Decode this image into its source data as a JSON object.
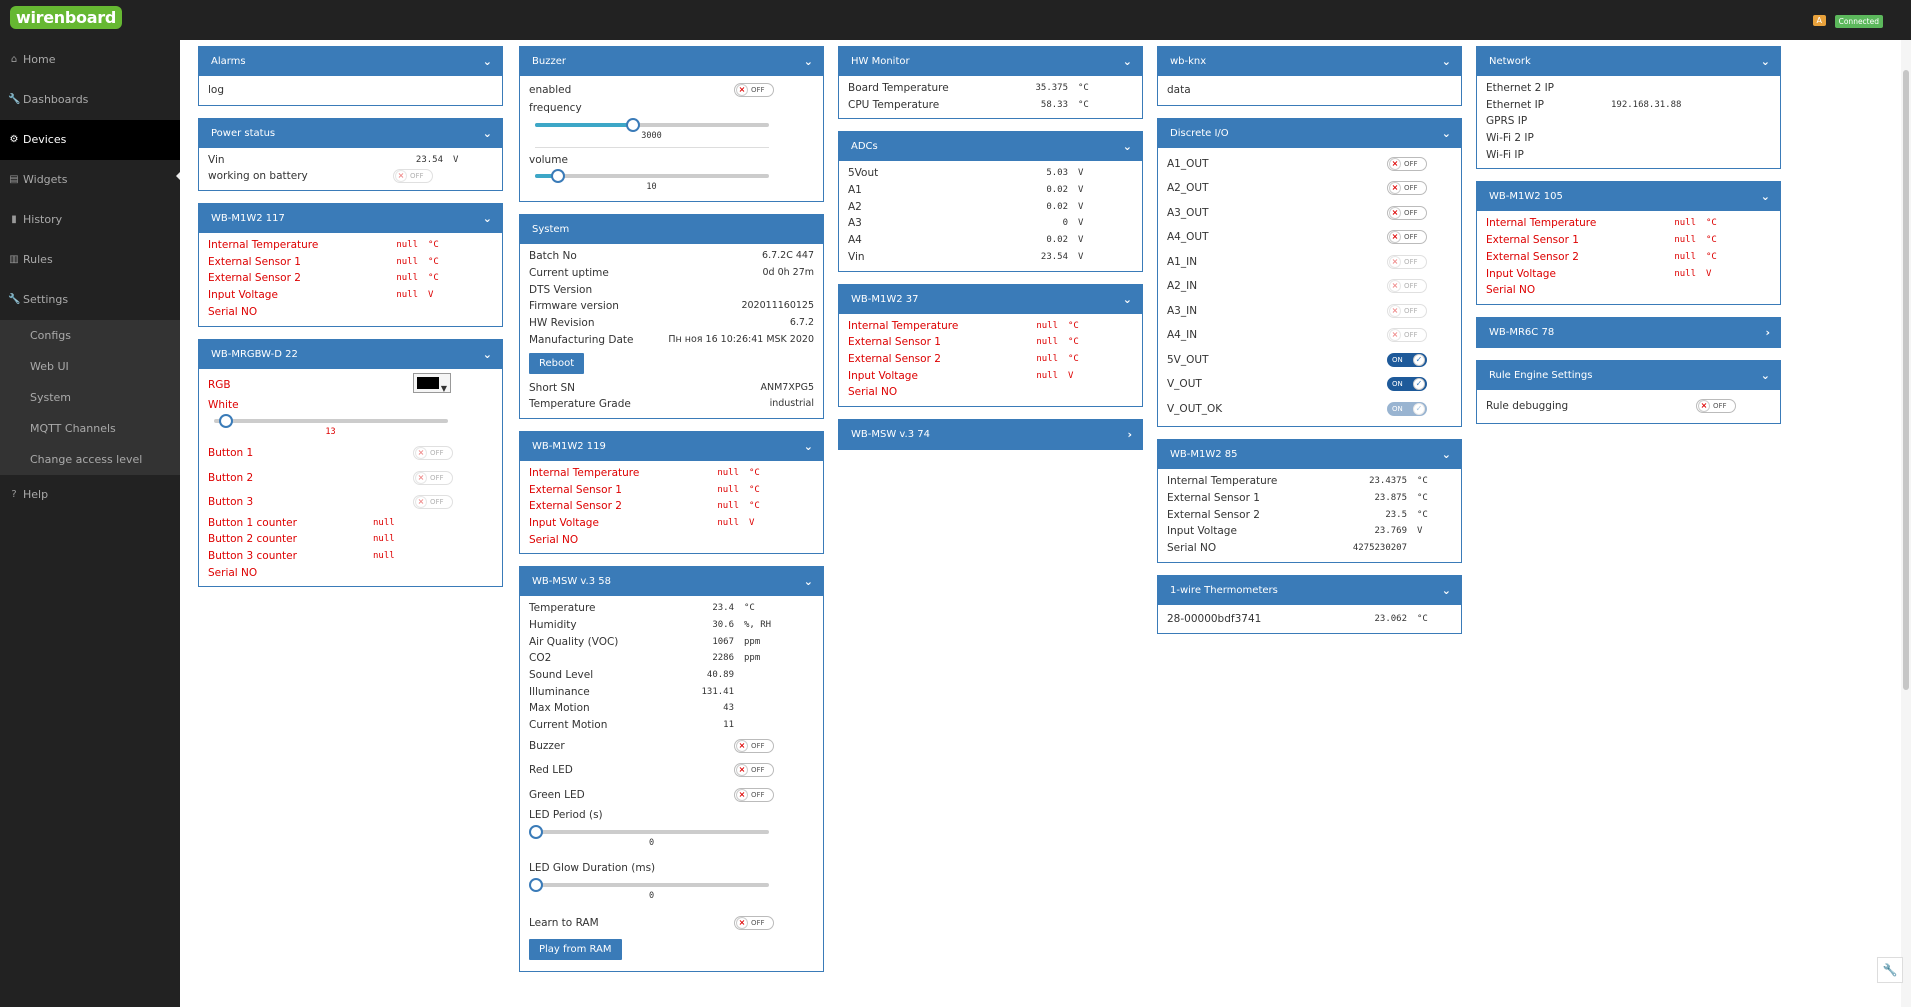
{
  "app": {
    "logo": "wirenboard",
    "badge_a": "A",
    "status": "Connected"
  },
  "nav": {
    "items": [
      {
        "icon": "⌂",
        "label": "Home"
      },
      {
        "icon": "🔧",
        "label": "Dashboards"
      },
      {
        "icon": "⚙",
        "label": "Devices"
      },
      {
        "icon": "▤",
        "label": "Widgets"
      },
      {
        "icon": "▮",
        "label": "History"
      },
      {
        "icon": "▥",
        "label": "Rules"
      },
      {
        "icon": "🔧",
        "label": "Settings"
      }
    ],
    "sub": [
      "Configs",
      "Web UI",
      "System",
      "MQTT Channels",
      "Change access level"
    ],
    "help": {
      "icon": "?",
      "label": "Help"
    }
  },
  "panels": {
    "alarms": {
      "title": "Alarms",
      "rows": [
        {
          "label": "log"
        }
      ]
    },
    "power": {
      "title": "Power status",
      "vin": {
        "label": "Vin",
        "value": "23.54",
        "unit": "V"
      },
      "battery": {
        "label": "working on battery",
        "state": "OFF"
      }
    },
    "m117": {
      "title": "WB-M1W2 117",
      "rows": [
        {
          "label": "Internal Temperature",
          "value": "null",
          "unit": "°C"
        },
        {
          "label": "External Sensor 1",
          "value": "null",
          "unit": "°C"
        },
        {
          "label": "External Sensor 2",
          "value": "null",
          "unit": "°C"
        },
        {
          "label": "Input Voltage",
          "value": "null",
          "unit": "V"
        },
        {
          "label": "Serial NO",
          "value": "",
          "unit": ""
        }
      ]
    },
    "rgbw": {
      "title": "WB-MRGBW-D 22",
      "rgb": "RGB",
      "white": "White",
      "white_value": "13",
      "white_pct": 0.05,
      "buttons": [
        {
          "label": "Button 1",
          "state": "OFF"
        },
        {
          "label": "Button 2",
          "state": "OFF"
        },
        {
          "label": "Button 3",
          "state": "OFF"
        }
      ],
      "counters": [
        {
          "label": "Button 1 counter",
          "value": "null"
        },
        {
          "label": "Button 2 counter",
          "value": "null"
        },
        {
          "label": "Button 3 counter",
          "value": "null"
        }
      ],
      "serial": "Serial NO"
    },
    "buzzer": {
      "title": "Buzzer",
      "enabled": "enabled",
      "enabled_state": "OFF",
      "frequency": "frequency",
      "frequency_value": "3000",
      "frequency_pct": 0.42,
      "volume": "volume",
      "volume_value": "10",
      "volume_pct": 0.1
    },
    "system": {
      "title": "System",
      "rows": [
        {
          "label": "Batch No",
          "value": "6.7.2C 447"
        },
        {
          "label": "Current uptime",
          "value": "0d 0h 27m"
        },
        {
          "label": "DTS Version",
          "value": ""
        },
        {
          "label": "Firmware version",
          "value": "202011160125"
        },
        {
          "label": "HW Revision",
          "value": "6.7.2"
        },
        {
          "label": "Manufacturing Date",
          "value": "Пн ноя 16 10:26:41 MSK 2020"
        }
      ],
      "reboot": "Reboot",
      "rows2": [
        {
          "label": "Short SN",
          "value": "ANM7XPG5"
        },
        {
          "label": "Temperature Grade",
          "value": "industrial"
        }
      ]
    },
    "m119": {
      "title": "WB-M1W2 119",
      "rows": [
        {
          "label": "Internal Temperature",
          "value": "null",
          "unit": "°C"
        },
        {
          "label": "External Sensor 1",
          "value": "null",
          "unit": "°C"
        },
        {
          "label": "External Sensor 2",
          "value": "null",
          "unit": "°C"
        },
        {
          "label": "Input Voltage",
          "value": "null",
          "unit": "V"
        },
        {
          "label": "Serial NO",
          "value": "",
          "unit": ""
        }
      ]
    },
    "msw58": {
      "title": "WB-MSW v.3 58",
      "rows": [
        {
          "label": "Temperature",
          "value": "23.4",
          "unit": "°C"
        },
        {
          "label": "Humidity",
          "value": "30.6",
          "unit": "%, RH"
        },
        {
          "label": "Air Quality (VOC)",
          "value": "1067",
          "unit": "ppm"
        },
        {
          "label": "CO2",
          "value": "2286",
          "unit": "ppm"
        },
        {
          "label": "Sound Level",
          "value": "40.89",
          "unit": ""
        },
        {
          "label": "Illuminance",
          "value": "131.41",
          "unit": ""
        },
        {
          "label": "Max Motion",
          "value": "43",
          "unit": ""
        },
        {
          "label": "Current Motion",
          "value": "11",
          "unit": ""
        }
      ],
      "toggles": [
        {
          "label": "Buzzer",
          "state": "OFF"
        },
        {
          "label": "Red LED",
          "state": "OFF"
        },
        {
          "label": "Green LED",
          "state": "OFF"
        }
      ],
      "led_period": "LED Period (s)",
      "led_period_value": "0",
      "led_glow": "LED Glow Duration (ms)",
      "led_glow_value": "0",
      "learn": {
        "label": "Learn to RAM",
        "state": "OFF"
      },
      "play": "Play from RAM"
    },
    "hw": {
      "title": "HW Monitor",
      "rows": [
        {
          "label": "Board Temperature",
          "value": "35.375",
          "unit": "°C"
        },
        {
          "label": "CPU Temperature",
          "value": "58.33",
          "unit": "°C"
        }
      ]
    },
    "adcs": {
      "title": "ADCs",
      "rows": [
        {
          "label": "5Vout",
          "value": "5.03",
          "unit": "V"
        },
        {
          "label": "A1",
          "value": "0.02",
          "unit": "V"
        },
        {
          "label": "A2",
          "value": "0.02",
          "unit": "V"
        },
        {
          "label": "A3",
          "value": "0",
          "unit": "V"
        },
        {
          "label": "A4",
          "value": "0.02",
          "unit": "V"
        },
        {
          "label": "Vin",
          "value": "23.54",
          "unit": "V"
        }
      ]
    },
    "m37": {
      "title": "WB-M1W2 37",
      "rows": [
        {
          "label": "Internal Temperature",
          "value": "null",
          "unit": "°C"
        },
        {
          "label": "External Sensor 1",
          "value": "null",
          "unit": "°C"
        },
        {
          "label": "External Sensor 2",
          "value": "null",
          "unit": "°C"
        },
        {
          "label": "Input Voltage",
          "value": "null",
          "unit": "V"
        },
        {
          "label": "Serial NO",
          "value": "",
          "unit": ""
        }
      ]
    },
    "msw74": {
      "title": "WB-MSW v.3 74"
    },
    "knx": {
      "title": "wb-knx",
      "rows": [
        {
          "label": "data"
        }
      ]
    },
    "dio": {
      "title": "Discrete I/O",
      "rows": [
        {
          "label": "A1_OUT",
          "state": "OFF",
          "disabled": false
        },
        {
          "label": "A2_OUT",
          "state": "OFF",
          "disabled": false
        },
        {
          "label": "A3_OUT",
          "state": "OFF",
          "disabled": false
        },
        {
          "label": "A4_OUT",
          "state": "OFF",
          "disabled": false
        },
        {
          "label": "A1_IN",
          "state": "OFF",
          "disabled": true
        },
        {
          "label": "A2_IN",
          "state": "OFF",
          "disabled": true
        },
        {
          "label": "A3_IN",
          "state": "OFF",
          "disabled": true
        },
        {
          "label": "A4_IN",
          "state": "OFF",
          "disabled": true
        },
        {
          "label": "5V_OUT",
          "state": "ON",
          "disabled": false
        },
        {
          "label": "V_OUT",
          "state": "ON",
          "disabled": false
        },
        {
          "label": "V_OUT_OK",
          "state": "ON",
          "disabled": true
        }
      ]
    },
    "m85": {
      "title": "WB-M1W2 85",
      "rows": [
        {
          "label": "Internal Temperature",
          "value": "23.4375",
          "unit": "°C"
        },
        {
          "label": "External Sensor 1",
          "value": "23.875",
          "unit": "°C"
        },
        {
          "label": "External Sensor 2",
          "value": "23.5",
          "unit": "°C"
        },
        {
          "label": "Input Voltage",
          "value": "23.769",
          "unit": "V"
        },
        {
          "label": "Serial NO",
          "value": "4275230207",
          "unit": ""
        }
      ]
    },
    "onewire": {
      "title": "1-wire Thermometers",
      "rows": [
        {
          "label": "28-00000bdf3741",
          "value": "23.062",
          "unit": "°C"
        }
      ]
    },
    "network": {
      "title": "Network",
      "rows": [
        {
          "label": "Ethernet 2 IP",
          "value": ""
        },
        {
          "label": "Ethernet IP",
          "value": "192.168.31.88"
        },
        {
          "label": "GPRS IP",
          "value": ""
        },
        {
          "label": "Wi-Fi 2 IP",
          "value": ""
        },
        {
          "label": "Wi-Fi IP",
          "value": ""
        }
      ]
    },
    "m105": {
      "title": "WB-M1W2 105",
      "rows": [
        {
          "label": "Internal Temperature",
          "value": "null",
          "unit": "°C"
        },
        {
          "label": "External Sensor 1",
          "value": "null",
          "unit": "°C"
        },
        {
          "label": "External Sensor 2",
          "value": "null",
          "unit": "°C"
        },
        {
          "label": "Input Voltage",
          "value": "null",
          "unit": "V"
        },
        {
          "label": "Serial NO",
          "value": "",
          "unit": ""
        }
      ]
    },
    "mr6c": {
      "title": "WB-MR6C 78"
    },
    "rules": {
      "title": "Rule Engine Settings",
      "debug": {
        "label": "Rule debugging",
        "state": "OFF"
      }
    }
  }
}
